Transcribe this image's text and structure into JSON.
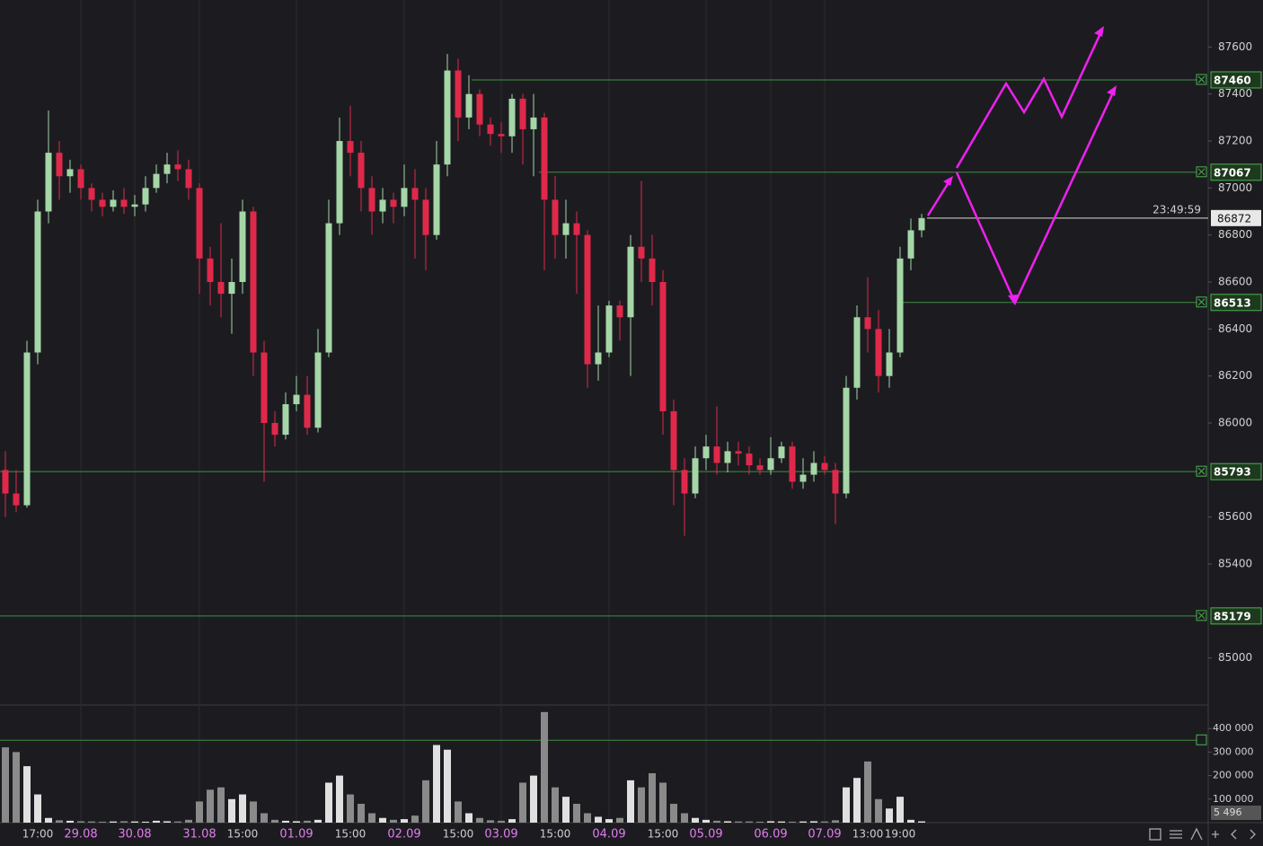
{
  "chart_data": {
    "type": "candlestick",
    "x": [
      null,
      null,
      null,
      "17:00",
      null,
      null,
      null,
      "29.08",
      null,
      null,
      null,
      null,
      "30.08",
      null,
      null,
      null,
      null,
      null,
      "31.08",
      null,
      null,
      null,
      "15:00",
      null,
      null,
      null,
      null,
      "01.09",
      null,
      null,
      null,
      null,
      "15:00",
      null,
      null,
      null,
      null,
      "02.09",
      null,
      null,
      null,
      null,
      "15:00",
      null,
      null,
      null,
      "03.09",
      null,
      null,
      null,
      null,
      "15:00",
      null,
      null,
      null,
      null,
      "04.09",
      null,
      null,
      null,
      null,
      "15:00",
      null,
      null,
      null,
      "05.09",
      null,
      null,
      null,
      null,
      null,
      "06.09",
      null,
      null,
      null,
      null,
      "07.09",
      null,
      null,
      null,
      "13:00",
      null,
      null,
      "19:00",
      null,
      null
    ],
    "open": [
      85800,
      85700,
      85650,
      86300,
      86900,
      87150,
      87050,
      87080,
      87000,
      86950,
      86920,
      86950,
      86920,
      86930,
      87000,
      87060,
      87100,
      87080,
      87000,
      86700,
      86600,
      86550,
      86600,
      86900,
      86300,
      86000,
      85950,
      86080,
      86120,
      85980,
      86300,
      86850,
      87200,
      87150,
      87000,
      86900,
      86950,
      86920,
      87000,
      86950,
      86800,
      87100,
      87500,
      87300,
      87400,
      87270,
      87230,
      87220,
      87380,
      87250,
      87300,
      86950,
      86800,
      86850,
      86800,
      86250,
      86300,
      86500,
      86450,
      86750,
      86700,
      86600,
      86050,
      85800,
      85700,
      85850,
      85900,
      85830,
      85880,
      85870,
      85820,
      85800,
      85850,
      85900,
      85750,
      85780,
      85830,
      85800,
      85700,
      86150,
      86450,
      86400,
      86200,
      86300,
      86700,
      86820
    ],
    "high": [
      85880,
      85800,
      86350,
      86950,
      87330,
      87200,
      87120,
      87100,
      87020,
      86980,
      86990,
      87000,
      86970,
      87050,
      87100,
      87150,
      87160,
      87120,
      87020,
      86750,
      86850,
      86700,
      86950,
      86920,
      86350,
      86050,
      86130,
      86200,
      86200,
      86400,
      86950,
      87300,
      87350,
      87200,
      87050,
      87000,
      86980,
      87100,
      87080,
      87000,
      87200,
      87570,
      87550,
      87480,
      87420,
      87300,
      87280,
      87400,
      87400,
      87400,
      87320,
      87050,
      86950,
      86900,
      86820,
      86500,
      86520,
      86520,
      86800,
      87030,
      86800,
      86650,
      86100,
      85850,
      85900,
      85950,
      86070,
      85920,
      85920,
      85900,
      85850,
      85940,
      85920,
      85920,
      85850,
      85880,
      85860,
      85830,
      86200,
      86500,
      86620,
      86480,
      86400,
      86750,
      86870,
      86890
    ],
    "low": [
      85600,
      85620,
      85640,
      86250,
      86850,
      86950,
      86980,
      86950,
      86900,
      86880,
      86900,
      86890,
      86880,
      86900,
      86980,
      87020,
      87030,
      86950,
      86550,
      86500,
      86450,
      86380,
      86550,
      86200,
      85750,
      85900,
      85930,
      86050,
      85950,
      85960,
      86280,
      86800,
      87050,
      86900,
      86800,
      86850,
      86850,
      86880,
      86700,
      86650,
      86780,
      87050,
      87200,
      87250,
      87220,
      87180,
      87150,
      87150,
      87100,
      87050,
      86650,
      86700,
      86700,
      86550,
      86150,
      86180,
      86280,
      86350,
      86200,
      86600,
      86500,
      85950,
      85650,
      85520,
      85680,
      85800,
      85780,
      85790,
      85820,
      85780,
      85780,
      85780,
      85830,
      85720,
      85720,
      85750,
      85780,
      85570,
      85680,
      86100,
      86300,
      86130,
      86150,
      86280,
      86650,
      86790
    ],
    "close": [
      85700,
      85650,
      86300,
      86900,
      87150,
      87050,
      87080,
      87000,
      86950,
      86920,
      86950,
      86920,
      86930,
      87000,
      87060,
      87100,
      87080,
      87000,
      86700,
      86600,
      86550,
      86600,
      86900,
      86300,
      86000,
      85950,
      86080,
      86120,
      85980,
      86300,
      86850,
      87200,
      87150,
      87000,
      86900,
      86950,
      86920,
      87000,
      86950,
      86800,
      87100,
      87500,
      87300,
      87400,
      87270,
      87230,
      87220,
      87380,
      87250,
      87300,
      86950,
      86800,
      86850,
      86800,
      86250,
      86300,
      86500,
      86450,
      86750,
      86700,
      86600,
      86050,
      85800,
      85700,
      85850,
      85900,
      85830,
      85880,
      85870,
      85820,
      85800,
      85850,
      85900,
      85750,
      85780,
      85830,
      85800,
      85700,
      86150,
      86450,
      86400,
      86200,
      86300,
      86700,
      86820,
      86872
    ],
    "volume": [
      320000,
      300000,
      240000,
      120000,
      20000,
      10000,
      8000,
      6000,
      5000,
      4000,
      5000,
      6000,
      5000,
      4000,
      8000,
      6000,
      5000,
      12000,
      90000,
      140000,
      150000,
      100000,
      120000,
      90000,
      40000,
      12000,
      8000,
      6000,
      8000,
      12000,
      170000,
      200000,
      120000,
      80000,
      40000,
      20000,
      12000,
      15000,
      30000,
      180000,
      330000,
      310000,
      90000,
      40000,
      20000,
      10000,
      8000,
      15000,
      170000,
      200000,
      470000,
      150000,
      110000,
      80000,
      40000,
      25000,
      15000,
      20000,
      180000,
      150000,
      210000,
      170000,
      80000,
      40000,
      20000,
      12000,
      8000,
      6000,
      5000,
      5000,
      4000,
      6000,
      5000,
      4000,
      5000,
      6000,
      5000,
      10000,
      150000,
      190000,
      260000,
      100000,
      60000,
      110000,
      12000,
      5496
    ],
    "last_volume_label": "5 496",
    "ylim": [
      84800,
      87800
    ],
    "yticks": [
      85000,
      85400,
      85600,
      86000,
      86200,
      86400,
      86600,
      86800,
      87000,
      87200,
      87400,
      87600
    ],
    "levels": [
      87460,
      87067,
      86513,
      85793,
      85179
    ],
    "current_price": 86872,
    "countdown": "23:49:59",
    "volume_ylim": [
      0,
      500000
    ],
    "volume_yticks": [
      {
        "value": 100000,
        "label": "100 000"
      },
      {
        "value": 200000,
        "label": "200 000"
      },
      {
        "value": 300000,
        "label": "300 000"
      },
      {
        "value": 400000,
        "label": "400 000"
      }
    ],
    "volume_level": 350000,
    "up_color": "#a5d6a7",
    "down_color": "#e0294a"
  }
}
